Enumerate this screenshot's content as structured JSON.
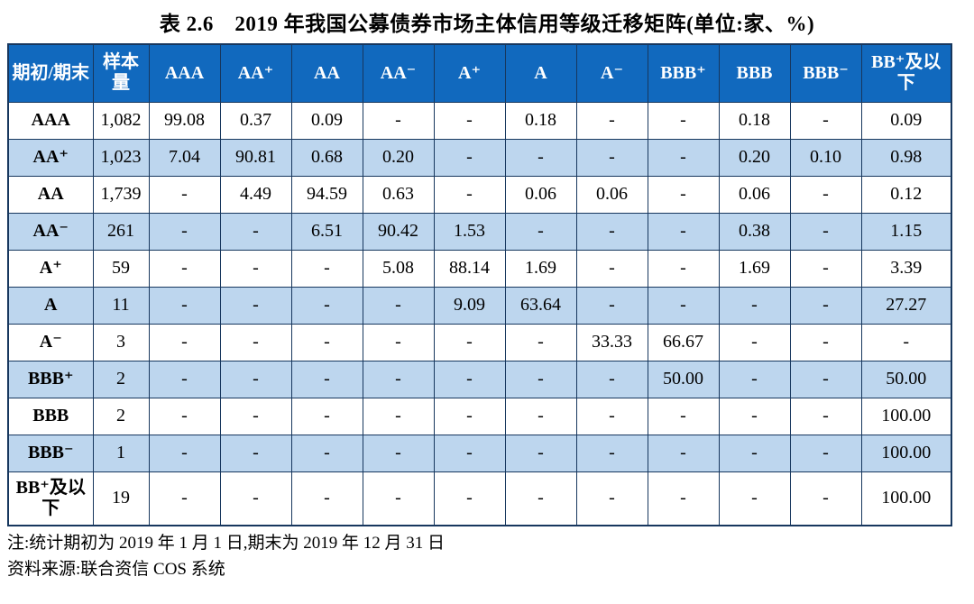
{
  "title": "表 2.6　2019 年我国公募债券市场主体信用等级迁移矩阵(单位:家、%)",
  "table": {
    "columns": [
      "期初/期末",
      "样本量",
      "AAA",
      "AA⁺",
      "AA",
      "AA⁻",
      "A⁺",
      "A",
      "A⁻",
      "BBB⁺",
      "BBB",
      "BBB⁻",
      "BB⁺及以下"
    ],
    "rows": [
      {
        "label": "AAA",
        "sample": "1,082",
        "values": [
          "99.08",
          "0.37",
          "0.09",
          "-",
          "-",
          "0.18",
          "-",
          "-",
          "0.18",
          "-",
          "0.09"
        ]
      },
      {
        "label": "AA⁺",
        "sample": "1,023",
        "values": [
          "7.04",
          "90.81",
          "0.68",
          "0.20",
          "-",
          "-",
          "-",
          "-",
          "0.20",
          "0.10",
          "0.98"
        ]
      },
      {
        "label": "AA",
        "sample": "1,739",
        "values": [
          "-",
          "4.49",
          "94.59",
          "0.63",
          "-",
          "0.06",
          "0.06",
          "-",
          "0.06",
          "-",
          "0.12"
        ]
      },
      {
        "label": "AA⁻",
        "sample": "261",
        "values": [
          "-",
          "-",
          "6.51",
          "90.42",
          "1.53",
          "-",
          "-",
          "-",
          "0.38",
          "-",
          "1.15"
        ]
      },
      {
        "label": "A⁺",
        "sample": "59",
        "values": [
          "-",
          "-",
          "-",
          "5.08",
          "88.14",
          "1.69",
          "-",
          "-",
          "1.69",
          "-",
          "3.39"
        ]
      },
      {
        "label": "A",
        "sample": "11",
        "values": [
          "-",
          "-",
          "-",
          "-",
          "9.09",
          "63.64",
          "-",
          "-",
          "-",
          "-",
          "27.27"
        ]
      },
      {
        "label": "A⁻",
        "sample": "3",
        "values": [
          "-",
          "-",
          "-",
          "-",
          "-",
          "-",
          "33.33",
          "66.67",
          "-",
          "-",
          "-"
        ]
      },
      {
        "label": "BBB⁺",
        "sample": "2",
        "values": [
          "-",
          "-",
          "-",
          "-",
          "-",
          "-",
          "-",
          "50.00",
          "-",
          "-",
          "50.00"
        ]
      },
      {
        "label": "BBB",
        "sample": "2",
        "values": [
          "-",
          "-",
          "-",
          "-",
          "-",
          "-",
          "-",
          "-",
          "-",
          "-",
          "100.00"
        ]
      },
      {
        "label": "BBB⁻",
        "sample": "1",
        "values": [
          "-",
          "-",
          "-",
          "-",
          "-",
          "-",
          "-",
          "-",
          "-",
          "-",
          "100.00"
        ]
      },
      {
        "label": "BB⁺及以下",
        "sample": "19",
        "values": [
          "-",
          "-",
          "-",
          "-",
          "-",
          "-",
          "-",
          "-",
          "-",
          "-",
          "100.00"
        ]
      }
    ]
  },
  "notes": [
    "注:统计期初为 2019 年 1 月 1 日,期末为 2019 年 12 月 31 日",
    "资料来源:联合资信 COS 系统"
  ],
  "colors": {
    "header_bg": "#1169BE",
    "alt_row_bg": "#BDD6EE",
    "border": "#17375E"
  }
}
